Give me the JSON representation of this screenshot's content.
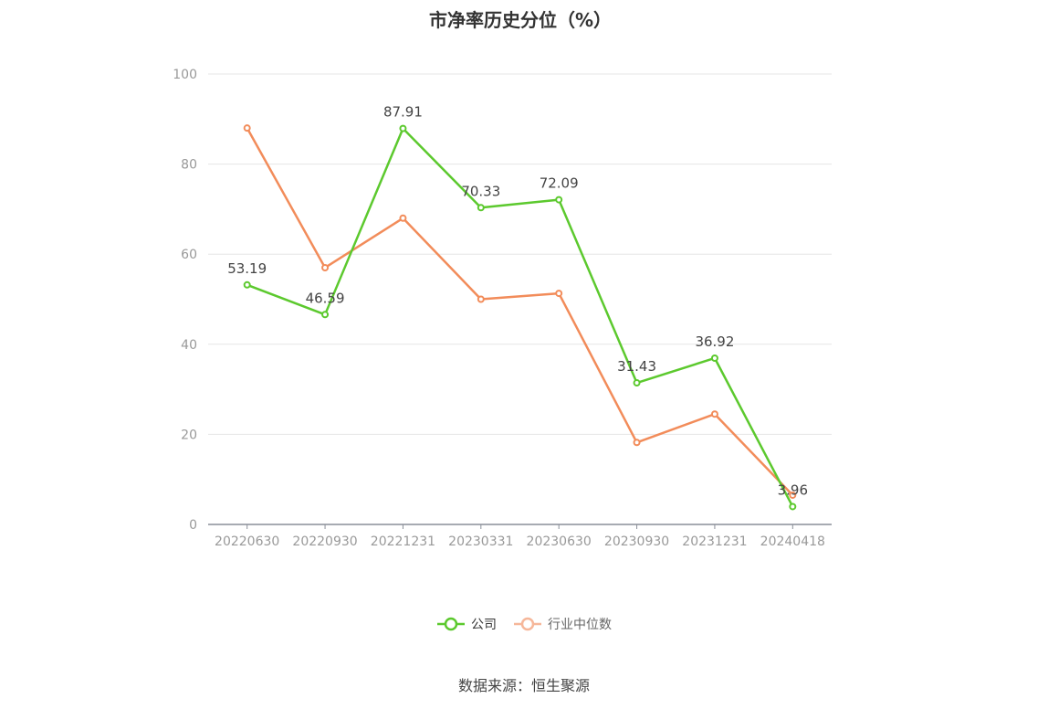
{
  "chart_data": {
    "type": "line",
    "title": "市净率历史分位（%）",
    "categories": [
      "20220630",
      "20220930",
      "20221231",
      "20230331",
      "20230630",
      "20230930",
      "20231231",
      "20240418"
    ],
    "ylim": [
      0,
      100
    ],
    "yticks": [
      "0",
      "20",
      "40",
      "60",
      "80",
      "100"
    ],
    "grid": true,
    "legend_position": "bottom",
    "series": [
      {
        "name": "公司",
        "color": "#5cc92e",
        "values": [
          53.19,
          46.59,
          87.91,
          70.33,
          72.09,
          31.43,
          36.92,
          3.96
        ],
        "labels": [
          "53.19",
          "46.59",
          "87.91",
          "70.33",
          "72.09",
          "31.43",
          "36.92",
          "3.96"
        ]
      },
      {
        "name": "行业中位数",
        "color": "#f28c5a",
        "values": [
          88.0,
          57.0,
          68.0,
          50.0,
          51.3,
          18.2,
          24.5,
          6.5
        ]
      }
    ]
  },
  "source": "数据来源：恒生聚源"
}
